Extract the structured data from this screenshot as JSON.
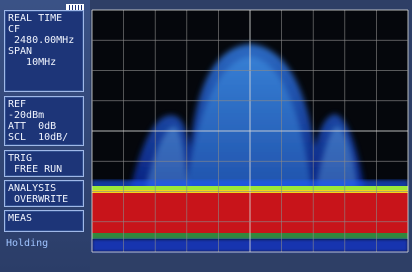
{
  "panel": {
    "buttons": [
      {
        "lines": [
          "REAL TIME",
          "CF",
          " 2480.00MHz",
          "SPAN",
          "   10MHz"
        ]
      },
      {
        "lines": [
          "REF",
          "-20dBm",
          "ATT  0dB",
          "SCL  10dB/"
        ]
      },
      {
        "lines": [
          "TRIG",
          " FREE RUN"
        ]
      },
      {
        "lines": [
          "ANALYSIS",
          " OVERWRITE"
        ]
      },
      {
        "lines": [
          "MEAS"
        ]
      }
    ],
    "status": "Holding"
  }
}
